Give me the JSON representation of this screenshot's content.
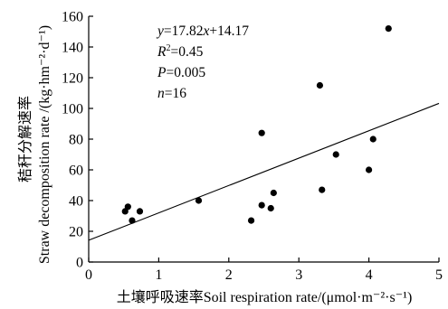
{
  "chart_data": {
    "type": "scatter",
    "xlabel": "土壤呼吸速率Soil respiration rate/(μmol·m⁻²·s⁻¹)",
    "ylabel_cn": "秸秆分解速率",
    "ylabel_en": "Straw decomposition rate /(kg·hm⁻²·d⁻¹)",
    "xlim": [
      0,
      5
    ],
    "ylim": [
      0,
      160
    ],
    "xticks": [
      0,
      1,
      2,
      3,
      4,
      5
    ],
    "yticks": [
      0,
      20,
      40,
      60,
      80,
      100,
      120,
      140,
      160
    ],
    "grid": false,
    "points": [
      {
        "x": 0.52,
        "y": 33
      },
      {
        "x": 0.56,
        "y": 36
      },
      {
        "x": 0.62,
        "y": 27
      },
      {
        "x": 0.73,
        "y": 33
      },
      {
        "x": 1.57,
        "y": 40
      },
      {
        "x": 2.32,
        "y": 27
      },
      {
        "x": 2.47,
        "y": 37
      },
      {
        "x": 2.47,
        "y": 84
      },
      {
        "x": 2.6,
        "y": 35
      },
      {
        "x": 2.64,
        "y": 45
      },
      {
        "x": 3.3,
        "y": 115
      },
      {
        "x": 3.33,
        "y": 47
      },
      {
        "x": 3.53,
        "y": 70
      },
      {
        "x": 4.0,
        "y": 60
      },
      {
        "x": 4.06,
        "y": 80
      },
      {
        "x": 4.28,
        "y": 152
      }
    ],
    "fit": {
      "slope": 17.82,
      "intercept": 14.17,
      "x_range": [
        0,
        5
      ]
    },
    "annotations": {
      "equation": {
        "italic_y": "y",
        "eq1": "=17.82",
        "italic_x": "x",
        "eq2": "+14.17"
      },
      "r2": {
        "base": "R",
        "sup": "2",
        "rest": "=0.45"
      },
      "p": {
        "italic": "P",
        "rest": "=0.005"
      },
      "n": {
        "italic": "n",
        "rest": "=16"
      }
    }
  }
}
